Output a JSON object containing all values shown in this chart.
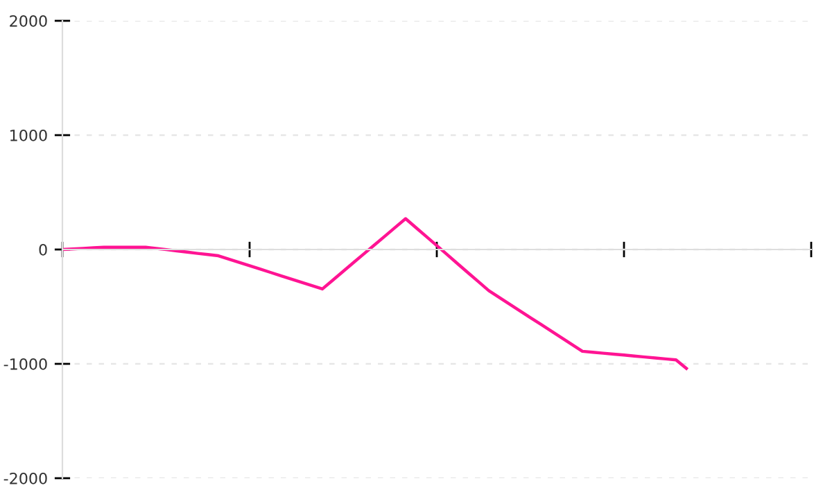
{
  "chart_data": {
    "type": "line",
    "categories": [
      null,
      null,
      null,
      null,
      null,
      null,
      null,
      null,
      null,
      null,
      null,
      null,
      null,
      null,
      null,
      null,
      null,
      null,
      null,
      null,
      null,
      null,
      null,
      null,
      null,
      null,
      null,
      null,
      null,
      null,
      null,
      null,
      null,
      null,
      null,
      null,
      null,
      null,
      null,
      null,
      null,
      null,
      null,
      null,
      null,
      null,
      null,
      null,
      null,
      null,
      null,
      null,
      null,
      null,
      null,
      null,
      null,
      null,
      null,
      null,
      null,
      null,
      null,
      null,
      null,
      null,
      null,
      null,
      null,
      null,
      null,
      null,
      null
    ],
    "series": [
      {
        "color": "#ff1493",
        "values": [
          0,
          5,
          10,
          15,
          20,
          20,
          20,
          20,
          20,
          9,
          -1,
          -12,
          -23,
          -34,
          -44,
          -55,
          -84,
          -113,
          -142,
          -171,
          -200,
          -229,
          -258,
          -287,
          -316,
          -345,
          -268,
          -191,
          -114,
          -37,
          39,
          116,
          193,
          270,
          191,
          113,
          34,
          -45,
          -124,
          -203,
          -281,
          -360,
          -419,
          -478,
          -537,
          -596,
          -654,
          -713,
          -772,
          -831,
          -890,
          -898,
          -907,
          -915,
          -923,
          -932,
          -940,
          -948,
          -957,
          -965,
          -1040,
          null,
          null,
          null,
          null,
          null,
          null,
          null,
          null,
          null,
          null,
          null,
          null
        ]
      }
    ],
    "ylim": [
      -2000,
      2000
    ],
    "yticks": [
      -2000,
      -1000,
      0,
      1000,
      2000
    ],
    "grid": "y",
    "tick_labels": "y"
  }
}
